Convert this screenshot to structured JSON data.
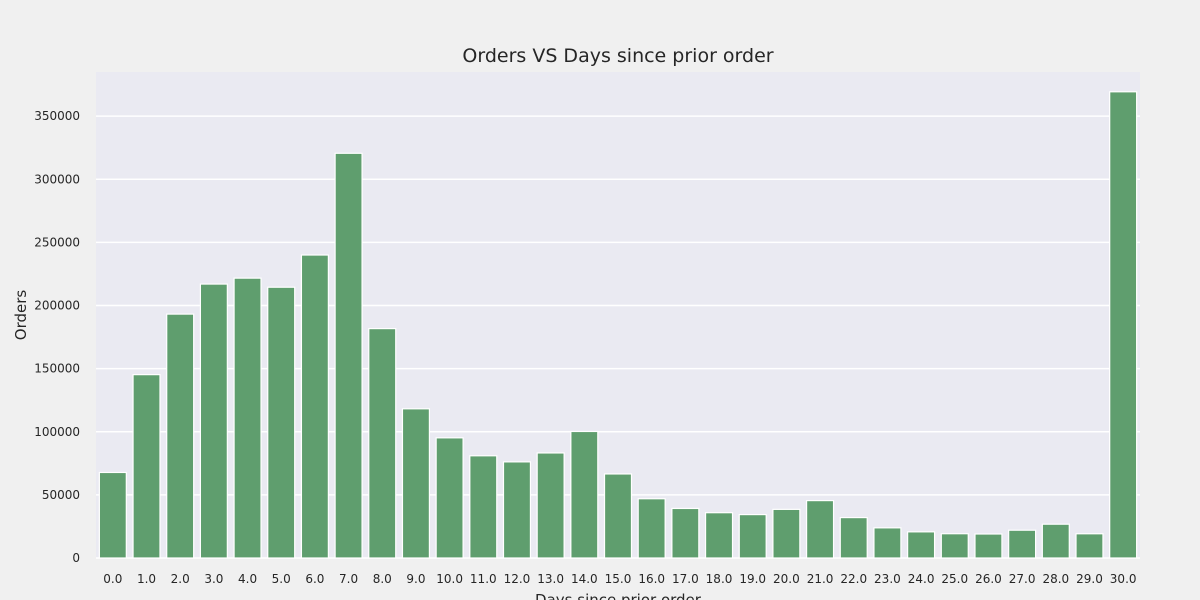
{
  "chart_data": {
    "type": "bar",
    "title": "Orders VS Days since prior order",
    "xlabel": "Days since prior order",
    "ylabel": "Orders",
    "categories": [
      "0.0",
      "1.0",
      "2.0",
      "3.0",
      "4.0",
      "5.0",
      "6.0",
      "7.0",
      "8.0",
      "9.0",
      "10.0",
      "11.0",
      "12.0",
      "13.0",
      "14.0",
      "15.0",
      "16.0",
      "17.0",
      "18.0",
      "19.0",
      "20.0",
      "21.0",
      "22.0",
      "23.0",
      "24.0",
      "25.0",
      "26.0",
      "27.0",
      "28.0",
      "29.0",
      "30.0"
    ],
    "values": [
      67755,
      145247,
      193206,
      217005,
      221696,
      214503,
      240013,
      320608,
      181717,
      118188,
      95186,
      80970,
      76146,
      83214,
      100230,
      66579,
      46941,
      39245,
      35881,
      34384,
      38527,
      45470,
      32012,
      23885,
      20712,
      19234,
      19016,
      22013,
      26777,
      19191,
      369323
    ],
    "yticks": [
      0,
      50000,
      100000,
      150000,
      200000,
      250000,
      300000,
      350000
    ],
    "ylim": [
      0,
      385000
    ],
    "grid": true,
    "colors": {
      "bar": "#5f9e6e",
      "plot_background": "#eaeaf2",
      "page_background": "#f0f0f0",
      "grid": "#ffffff"
    }
  }
}
